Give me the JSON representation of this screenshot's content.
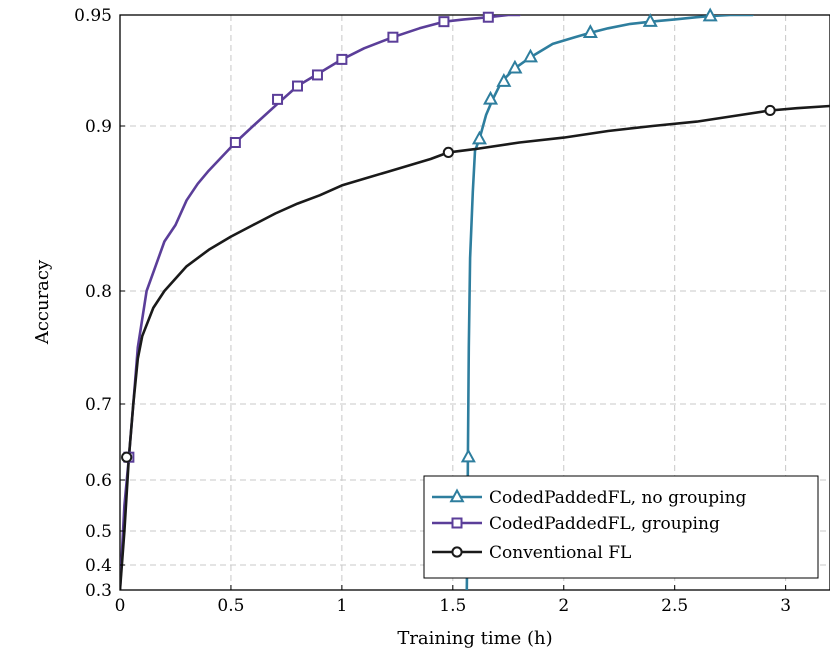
{
  "chart_data": {
    "type": "line",
    "title": "",
    "xlabel": "Training time (h)",
    "ylabel": "Accuracy",
    "xlim": [
      0,
      3.2
    ],
    "ylim": [
      0.3,
      0.95
    ],
    "y_scale": "nonlinear (stretched toward top)",
    "y_axis_map": [
      [
        0.3,
        590
      ],
      [
        0.4,
        565
      ],
      [
        0.5,
        531
      ],
      [
        0.6,
        480
      ],
      [
        0.7,
        404
      ],
      [
        0.8,
        291
      ],
      [
        0.9,
        126
      ],
      [
        0.95,
        15
      ]
    ],
    "x_ticks": [
      0,
      0.5,
      1,
      1.5,
      2,
      2.5,
      3
    ],
    "x_tick_labels": [
      "0",
      "0.5",
      "1",
      "1.5",
      "2",
      "2.5",
      "3"
    ],
    "y_ticks": [
      0.3,
      0.4,
      0.5,
      0.6,
      0.7,
      0.8,
      0.9,
      0.95
    ],
    "y_tick_labels": [
      "0.3",
      "0.4",
      "0.5",
      "0.6",
      "0.7",
      "0.8",
      "0.9",
      "0.95"
    ],
    "grid": true,
    "legend_position": "bottom-right",
    "series": [
      {
        "name": "CodedPaddedFL, no grouping",
        "color": "#2e7e9e",
        "marker": "triangle",
        "x": [
          1.563,
          1.566,
          1.568,
          1.572,
          1.578,
          1.59,
          1.6,
          1.62,
          1.65,
          1.68,
          1.72,
          1.78,
          1.85,
          1.95,
          2.05,
          2.12,
          2.2,
          2.3,
          2.39,
          2.5,
          2.6,
          2.66,
          2.75,
          2.85
        ],
        "y": [
          0.3,
          0.5,
          0.63,
          0.75,
          0.82,
          0.86,
          0.885,
          0.892,
          0.905,
          0.912,
          0.92,
          0.926,
          0.931,
          0.937,
          0.94,
          0.942,
          0.944,
          0.946,
          0.947,
          0.948,
          0.949,
          0.9495,
          0.95,
          0.95
        ],
        "marker_points": [
          [
            1.57,
            0.63
          ],
          [
            1.62,
            0.892
          ],
          [
            1.67,
            0.912
          ],
          [
            1.73,
            0.92
          ],
          [
            1.78,
            0.926
          ],
          [
            1.85,
            0.931
          ],
          [
            2.12,
            0.942
          ],
          [
            2.39,
            0.947
          ],
          [
            2.66,
            0.9495
          ]
        ]
      },
      {
        "name": "CodedPaddedFL, grouping",
        "color": "#5b3e99",
        "marker": "square",
        "x": [
          0.0,
          0.02,
          0.04,
          0.06,
          0.08,
          0.1,
          0.12,
          0.16,
          0.2,
          0.25,
          0.3,
          0.35,
          0.4,
          0.45,
          0.52,
          0.6,
          0.71,
          0.8,
          0.9,
          1.0,
          1.1,
          1.23,
          1.35,
          1.46,
          1.55,
          1.66,
          1.75,
          1.8
        ],
        "y": [
          0.3,
          0.55,
          0.63,
          0.7,
          0.75,
          0.775,
          0.8,
          0.815,
          0.83,
          0.84,
          0.855,
          0.865,
          0.873,
          0.88,
          0.89,
          0.9,
          0.91,
          0.918,
          0.924,
          0.93,
          0.935,
          0.94,
          0.944,
          0.947,
          0.948,
          0.949,
          0.95,
          0.95
        ],
        "marker_points": [
          [
            0.04,
            0.63
          ],
          [
            0.52,
            0.89
          ],
          [
            0.71,
            0.912
          ],
          [
            0.8,
            0.918
          ],
          [
            0.89,
            0.923
          ],
          [
            1.0,
            0.93
          ],
          [
            1.23,
            0.94
          ],
          [
            1.46,
            0.947
          ],
          [
            1.66,
            0.949
          ]
        ]
      },
      {
        "name": "Conventional FL",
        "color": "#1a1a1a",
        "marker": "circle",
        "x": [
          0.0,
          0.02,
          0.04,
          0.06,
          0.08,
          0.1,
          0.15,
          0.2,
          0.3,
          0.4,
          0.5,
          0.6,
          0.7,
          0.8,
          0.9,
          1.0,
          1.1,
          1.2,
          1.3,
          1.4,
          1.48,
          1.6,
          1.8,
          2.0,
          2.2,
          2.4,
          2.6,
          2.8,
          2.93,
          3.05,
          3.2
        ],
        "y": [
          0.3,
          0.5,
          0.63,
          0.7,
          0.74,
          0.76,
          0.785,
          0.8,
          0.815,
          0.825,
          0.833,
          0.84,
          0.847,
          0.853,
          0.858,
          0.864,
          0.868,
          0.872,
          0.876,
          0.88,
          0.884,
          0.886,
          0.89,
          0.893,
          0.897,
          0.9,
          0.902,
          0.905,
          0.907,
          0.908,
          0.909
        ],
        "marker_points": [
          [
            0.03,
            0.63
          ],
          [
            1.48,
            0.884
          ],
          [
            2.93,
            0.907
          ]
        ]
      }
    ]
  }
}
